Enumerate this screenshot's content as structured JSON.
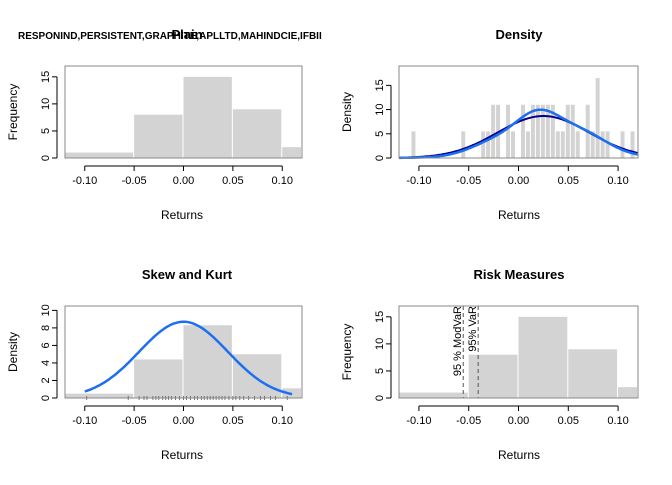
{
  "chart_data": [
    {
      "type": "histogram",
      "title": "Plain",
      "overlay_title": "RESPONIND,PERSISTENT,GRAPHITE,APLLTD,MAHINDCIE,IFBII",
      "xlabel": "Returns",
      "ylabel": "Frequency",
      "xlim": [
        -0.12,
        0.12
      ],
      "ylim": [
        0,
        17
      ],
      "xticks": [
        "-0.10",
        "-0.05",
        "0.00",
        "0.05",
        "0.10"
      ],
      "yticks": [
        "0",
        "5",
        "10",
        "15"
      ],
      "bins": [
        {
          "from": -0.15,
          "to": -0.05,
          "count": 1
        },
        {
          "from": -0.05,
          "to": 0.0,
          "count": 8
        },
        {
          "from": 0.0,
          "to": 0.05,
          "count": 15
        },
        {
          "from": 0.05,
          "to": 0.1,
          "count": 9
        },
        {
          "from": 0.1,
          "to": 0.15,
          "count": 2
        }
      ]
    },
    {
      "type": "histogram",
      "title": "Density",
      "xlabel": "Returns",
      "ylabel": "Density",
      "xlim": [
        -0.12,
        0.12
      ],
      "ylim": [
        0,
        19
      ],
      "xticks": [
        "-0.10",
        "-0.05",
        "0.00",
        "0.05",
        "0.10"
      ],
      "yticks": [
        "0",
        "5",
        "10",
        "15"
      ],
      "bar_width": 0.005,
      "bins": [
        {
          "x": -0.105,
          "y": 5.5
        },
        {
          "x": -0.055,
          "y": 5.5
        },
        {
          "x": -0.035,
          "y": 5.5
        },
        {
          "x": -0.03,
          "y": 5.5
        },
        {
          "x": -0.025,
          "y": 11
        },
        {
          "x": -0.02,
          "y": 11
        },
        {
          "x": -0.01,
          "y": 11
        },
        {
          "x": -0.005,
          "y": 5.5
        },
        {
          "x": 0.005,
          "y": 11
        },
        {
          "x": 0.01,
          "y": 5.5
        },
        {
          "x": 0.015,
          "y": 11
        },
        {
          "x": 0.02,
          "y": 11
        },
        {
          "x": 0.025,
          "y": 11
        },
        {
          "x": 0.03,
          "y": 11
        },
        {
          "x": 0.035,
          "y": 11
        },
        {
          "x": 0.04,
          "y": 5.5
        },
        {
          "x": 0.045,
          "y": 5.5
        },
        {
          "x": 0.05,
          "y": 11
        },
        {
          "x": 0.055,
          "y": 11
        },
        {
          "x": 0.06,
          "y": 5.5
        },
        {
          "x": 0.07,
          "y": 11
        },
        {
          "x": 0.075,
          "y": 5.5
        },
        {
          "x": 0.08,
          "y": 16.5
        },
        {
          "x": 0.085,
          "y": 5.5
        },
        {
          "x": 0.09,
          "y": 5.5
        },
        {
          "x": 0.105,
          "y": 5.5
        },
        {
          "x": 0.115,
          "y": 5.5
        }
      ],
      "curves": [
        {
          "color": "#00008b",
          "kind": "normal",
          "mean": 0.025,
          "sd": 0.046
        },
        {
          "color": "#1e6ff0",
          "kind": "kernel",
          "mean": 0.026,
          "sd": 0.042
        }
      ]
    },
    {
      "type": "histogram",
      "title": "Skew and Kurt",
      "xlabel": "Returns",
      "ylabel": "Density",
      "xlim": [
        -0.12,
        0.12
      ],
      "ylim": [
        0,
        10.5
      ],
      "xticks": [
        "-0.10",
        "-0.05",
        "0.00",
        "0.05",
        "0.10"
      ],
      "yticks": [
        "0",
        "2",
        "4",
        "6",
        "8",
        "10"
      ],
      "bins": [
        {
          "from": -0.15,
          "to": -0.05,
          "value": 0.5
        },
        {
          "from": -0.05,
          "to": 0.0,
          "value": 4.4
        },
        {
          "from": 0.0,
          "to": 0.05,
          "value": 8.3
        },
        {
          "from": 0.05,
          "to": 0.1,
          "value": 5.0
        },
        {
          "from": 0.1,
          "to": 0.15,
          "value": 1.1
        }
      ],
      "curve": {
        "color": "#1e6ff0",
        "mean": 0.0,
        "sd": 0.045,
        "peak": 8.7,
        "from": -0.1,
        "to": 0.11
      },
      "rug": [
        -0.098,
        -0.056,
        -0.045,
        -0.04,
        -0.037,
        -0.031,
        -0.028,
        -0.025,
        -0.021,
        -0.018,
        -0.015,
        -0.012,
        -0.008,
        -0.004,
        0.0,
        0.003,
        0.007,
        0.011,
        0.014,
        0.018,
        0.021,
        0.024,
        0.027,
        0.03,
        0.033,
        0.036,
        0.039,
        0.042,
        0.046,
        0.05,
        0.053,
        0.057,
        0.061,
        0.066,
        0.072,
        0.078,
        0.082,
        0.088,
        0.093,
        0.105
      ]
    },
    {
      "type": "histogram",
      "title": "Risk Measures",
      "xlabel": "Returns",
      "ylabel": "Frequency",
      "xlim": [
        -0.12,
        0.12
      ],
      "ylim": [
        0,
        17
      ],
      "xticks": [
        "-0.10",
        "-0.05",
        "0.00",
        "0.05",
        "0.10"
      ],
      "yticks": [
        "0",
        "5",
        "10",
        "15"
      ],
      "bins": [
        {
          "from": -0.15,
          "to": -0.05,
          "count": 1
        },
        {
          "from": -0.05,
          "to": 0.0,
          "count": 8
        },
        {
          "from": 0.0,
          "to": 0.05,
          "count": 15
        },
        {
          "from": 0.05,
          "to": 0.1,
          "count": 9
        },
        {
          "from": 0.1,
          "to": 0.15,
          "count": 2
        }
      ],
      "vlines": [
        {
          "x": -0.0555,
          "label": "95 % ModVaR"
        },
        {
          "x": -0.0405,
          "label": "95% VaR"
        }
      ]
    }
  ]
}
